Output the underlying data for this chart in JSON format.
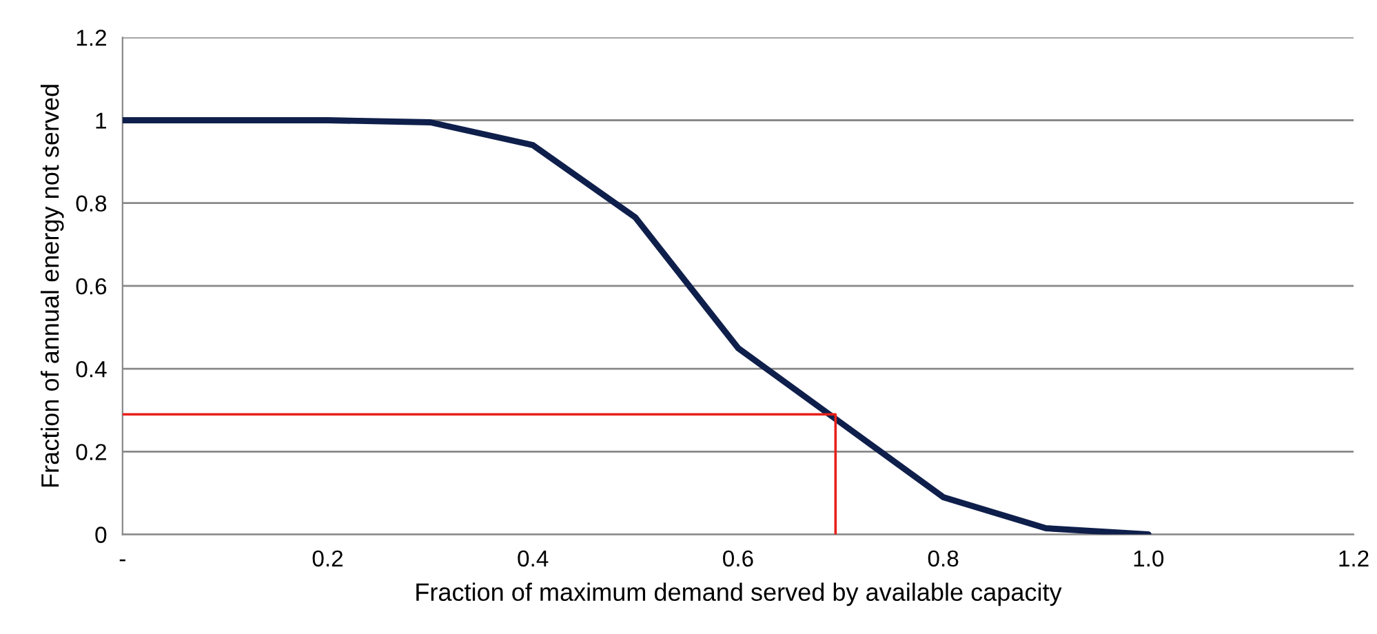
{
  "chart_data": {
    "type": "line",
    "xlabel": "Fraction of maximum demand served by available capacity",
    "ylabel": "Fraction of annual energy not served",
    "series": [
      {
        "color": "#0f1f4b",
        "x": [
          0,
          0.1,
          0.2,
          0.3,
          0.4,
          0.5,
          0.6,
          0.7,
          0.8,
          0.9,
          1.0
        ],
        "values": [
          1,
          1,
          1,
          0.995,
          0.94,
          0.765,
          0.45,
          0.27,
          0.09,
          0.015,
          0.0
        ]
      },
      {
        "color": "#e8201a",
        "x": [
          0,
          0.695,
          0.695
        ],
        "values": [
          0.29,
          0.29,
          0
        ]
      }
    ],
    "xlim": [
      0,
      1.2
    ],
    "xticks": [
      {
        "value": 0,
        "label": "-"
      },
      0.2,
      0.4,
      0.6,
      0.8,
      {
        "value": 1,
        "label": "1.0"
      },
      1.2
    ],
    "ylim": [
      0,
      1.2
    ],
    "yticks": [
      0,
      0.2,
      0.4,
      0.6,
      0.8,
      1,
      1.2
    ],
    "grid": "y",
    "legend": false,
    "marker": "none",
    "line_style": "solid"
  }
}
